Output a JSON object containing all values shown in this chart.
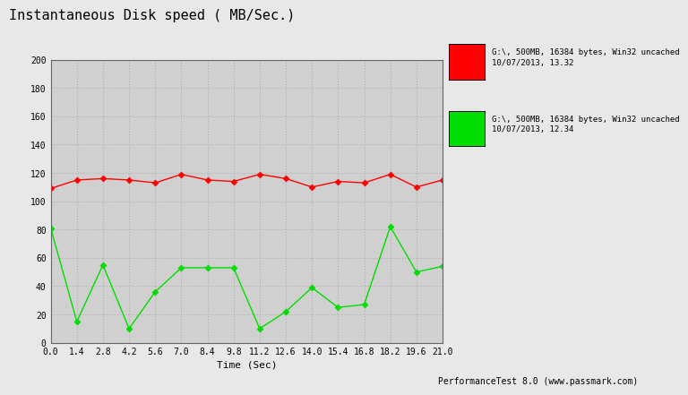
{
  "title": "Instantaneous Disk speed ( MB/Sec.)",
  "xlabel": "Time (Sec)",
  "fig_bg_color": "#e8e8e8",
  "plot_bg_color": "#d0d0d0",
  "ylim": [
    0,
    200
  ],
  "xlim": [
    0.0,
    21.0
  ],
  "xticks": [
    0.0,
    1.4,
    2.8,
    4.2,
    5.6,
    7.0,
    8.4,
    9.8,
    11.2,
    12.6,
    14.0,
    15.4,
    16.8,
    18.2,
    19.6,
    21.0
  ],
  "yticks": [
    0,
    20,
    40,
    60,
    80,
    100,
    120,
    140,
    160,
    180,
    200
  ],
  "red_x": [
    0.0,
    1.4,
    2.8,
    4.2,
    5.6,
    7.0,
    8.4,
    9.8,
    11.2,
    12.6,
    14.0,
    15.4,
    16.8,
    18.2,
    19.6,
    21.0
  ],
  "red_y": [
    109,
    115,
    116,
    115,
    113,
    119,
    115,
    114,
    119,
    116,
    110,
    114,
    113,
    119,
    110,
    115
  ],
  "green_x": [
    0.0,
    1.4,
    2.8,
    4.2,
    5.6,
    7.0,
    8.4,
    9.8,
    11.2,
    12.6,
    14.0,
    15.4,
    16.8,
    18.2,
    19.6,
    21.0
  ],
  "green_y": [
    81,
    15,
    55,
    10,
    36,
    53,
    53,
    53,
    10,
    22,
    39,
    25,
    27,
    82,
    50,
    54
  ],
  "red_color": "#ff0000",
  "green_color": "#00dd00",
  "marker_size": 3.5,
  "linewidth": 1.0,
  "legend_red_line1": "G:\\, 500MB, 16384 bytes, Win32 uncached",
  "legend_red_line2": "10/07/2013, 13.32",
  "legend_green_line1": "G:\\, 500MB, 16384 bytes, Win32 uncached",
  "legend_green_line2": "10/07/2013, 12.34",
  "footer": "PerformanceTest 8.0 (www.passmark.com)",
  "grid_color": "#b0b0b0"
}
